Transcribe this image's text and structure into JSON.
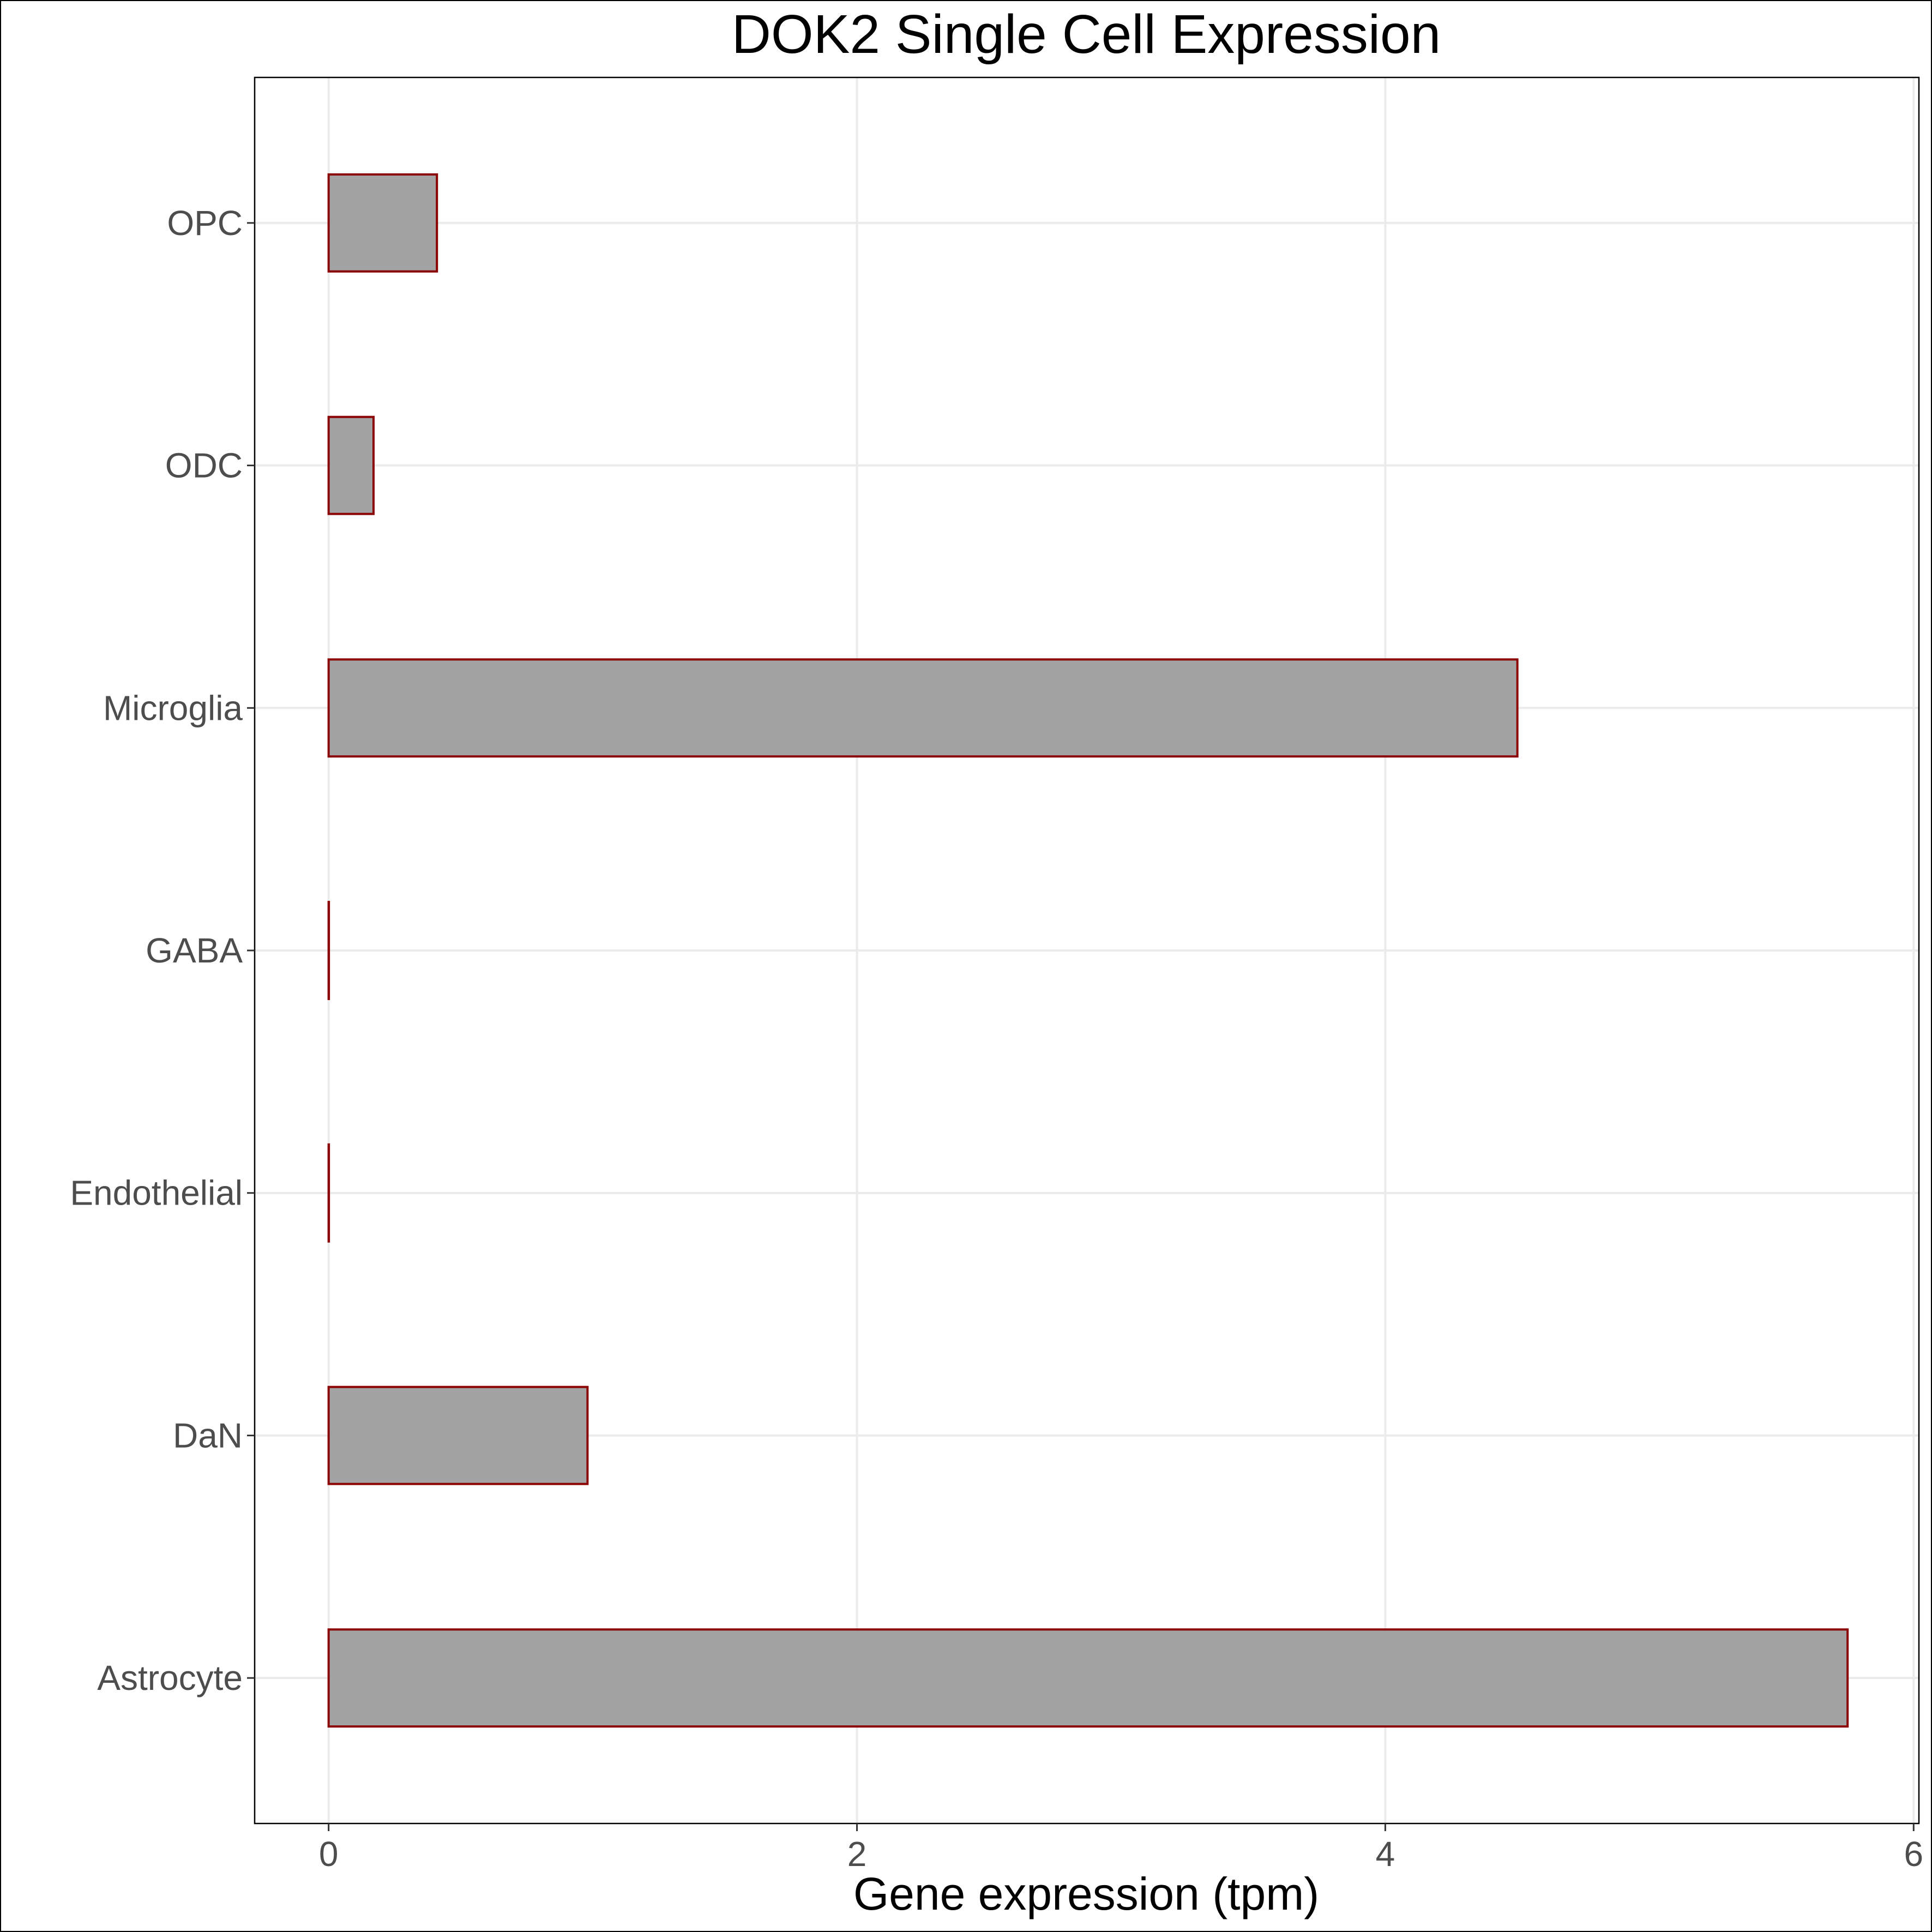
{
  "chart_data": {
    "type": "bar",
    "orientation": "horizontal",
    "title": "DOK2 Single Cell Expression",
    "xlabel": "Gene expression (tpm)",
    "ylabel": "",
    "categories": [
      "Astrocyte",
      "DaN",
      "Endothelial",
      "GABA",
      "Microglia",
      "ODC",
      "OPC"
    ],
    "values": [
      5.75,
      0.98,
      0.0,
      0.0,
      4.5,
      0.17,
      0.41
    ],
    "xlim": [
      -0.28,
      6.02
    ],
    "xticks": [
      0,
      2,
      4,
      6
    ],
    "grid": true,
    "legend": "none",
    "colors": {
      "bar_fill": "#a3a3a3",
      "bar_stroke": "#8b0000",
      "grid": "#ebebeb",
      "panel_border": "#000000",
      "tick_text": "#4d4d4d"
    }
  }
}
